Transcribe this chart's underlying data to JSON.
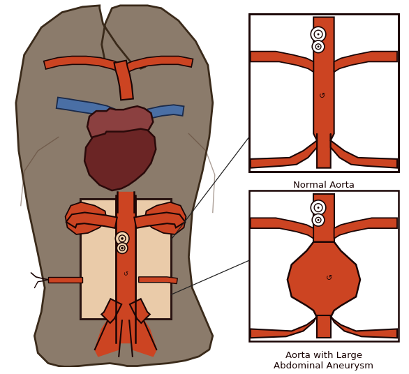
{
  "bg_color": "#ffffff",
  "skin_color": "#8B7B6B",
  "skin_outline": "#3a2a1a",
  "aorta_fill": "#CC4422",
  "aorta_dark": "#993311",
  "aorta_outline": "#1a0505",
  "heart_upper": "#8B4040",
  "heart_lower": "#6B2525",
  "blue_vessel": "#4A6FA5",
  "blue_outline": "#1a2a4a",
  "highlight_fill": "#F5D5B0",
  "highlight_outline": "#1a0505",
  "label_normal": "Normal Aorta",
  "label_aneurysm": "Aorta with Large\nAbdominal Aneurysm",
  "figsize": [
    5.86,
    5.36
  ],
  "dpi": 100
}
